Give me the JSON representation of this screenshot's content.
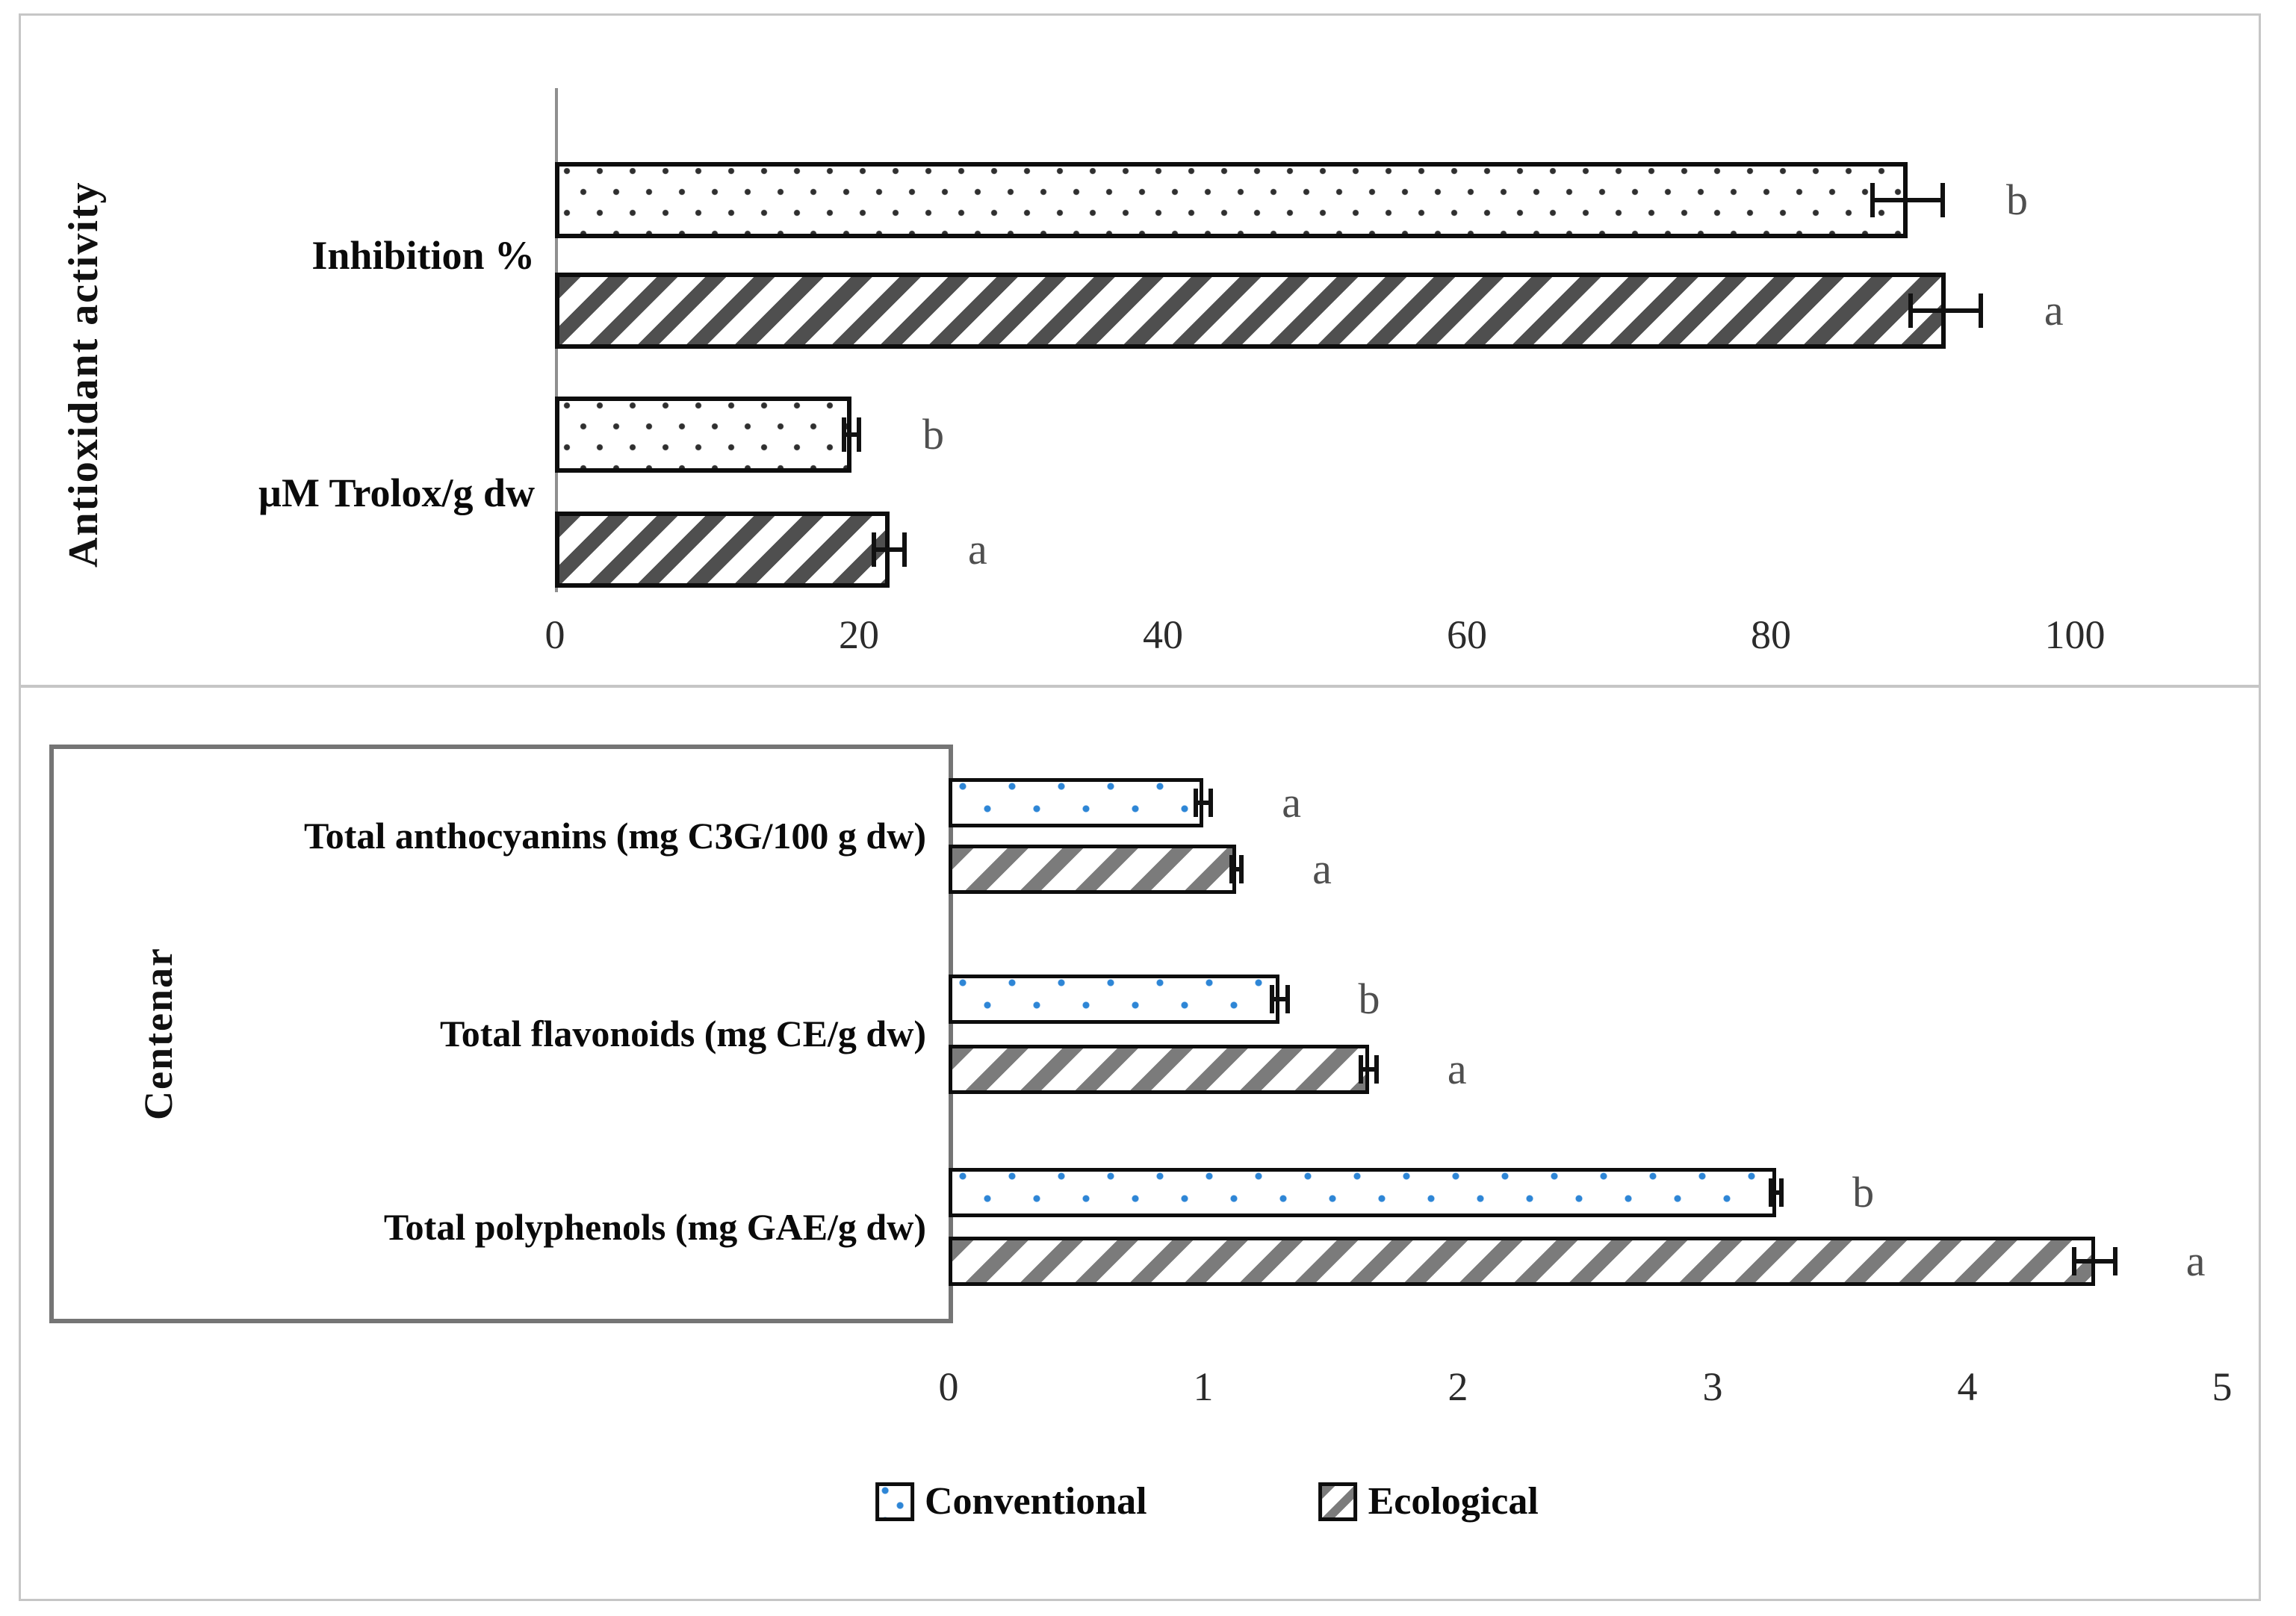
{
  "figure": {
    "description": "Two stacked horizontal bar charts comparing Conventional vs Ecological samples",
    "legend": {
      "items": [
        "Conventional",
        "Ecological"
      ]
    },
    "colors": {
      "conventional_dot_top": "#2f2f2f",
      "conventional_dot_bottom": "#2e86d6",
      "ecological_hatch_top": "#4f4f4f",
      "ecological_hatch_bottom": "#7b7b7b",
      "bar_outline": "#0d0d0d",
      "significance_letter": "#4f4f4f",
      "axis_line": "#8f8f8f",
      "panel_border": "#c6c6c6",
      "category_box_border": "#757575"
    }
  },
  "chart_data": [
    {
      "type": "bar",
      "orientation": "horizontal",
      "group_label": "Antioxidant activity",
      "categories": [
        "Inhibition %",
        "µM Trolox/g dw"
      ],
      "series": [
        {
          "name": "Conventional",
          "pattern": "dotted",
          "values": [
            89,
            19.5
          ],
          "errors": [
            2.3,
            0.5
          ],
          "letters": [
            "b",
            "b"
          ]
        },
        {
          "name": "Ecological",
          "pattern": "hatched",
          "values": [
            91.5,
            22
          ],
          "errors": [
            2.3,
            1.0
          ],
          "letters": [
            "a",
            "a"
          ]
        }
      ],
      "xlim": [
        0,
        100
      ],
      "ticks": [
        0,
        20,
        40,
        60,
        80,
        100
      ],
      "grid": false,
      "legend_shown": false
    },
    {
      "type": "bar",
      "orientation": "horizontal",
      "group_label": "Centenar",
      "categories": [
        "Total anthocyanins (mg C3G/100 g dw)",
        "Total flavonoids (mg CE/g dw)",
        "Total polyphenols (mg GAE/g dw)"
      ],
      "series": [
        {
          "name": "Conventional",
          "pattern": "dotted",
          "values": [
            1.0,
            1.3,
            3.25
          ],
          "errors": [
            0.03,
            0.03,
            0.02
          ],
          "letters": [
            "a",
            "b",
            "b"
          ]
        },
        {
          "name": "Ecological",
          "pattern": "hatched",
          "values": [
            1.13,
            1.65,
            4.5
          ],
          "errors": [
            0.02,
            0.03,
            0.08
          ],
          "letters": [
            "a",
            "a",
            "a"
          ]
        }
      ],
      "xlim": [
        0,
        5
      ],
      "ticks": [
        0,
        1,
        2,
        3,
        4,
        5
      ],
      "grid": false,
      "legend_shown": true,
      "legend_position": "bottom"
    }
  ]
}
